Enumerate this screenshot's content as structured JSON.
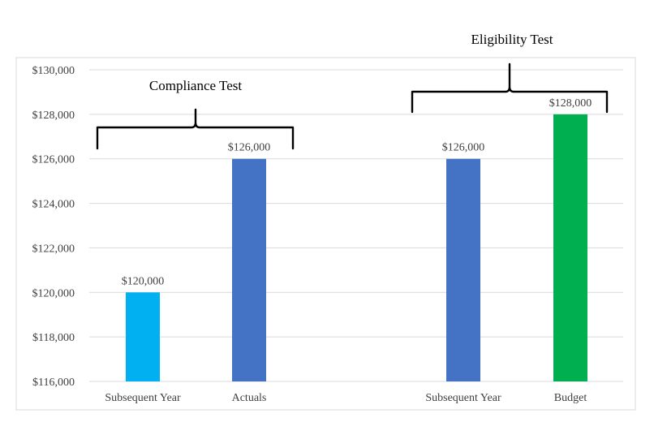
{
  "chart_data": {
    "type": "bar",
    "title": "",
    "xlabel": "",
    "ylabel": "",
    "ylim": [
      116000,
      130000
    ],
    "ytick_step": 2000,
    "ytick_labels": [
      "$116,000",
      "$118,000",
      "$120,000",
      "$122,000",
      "$124,000",
      "$126,000",
      "$128,000",
      "$130,000"
    ],
    "grid": true,
    "legend": "none",
    "categories": [
      "Subsequent Year",
      "Actuals",
      "Subsequent Year",
      "Budget"
    ],
    "values": [
      120000,
      126000,
      126000,
      128000
    ],
    "data_labels": [
      "$120,000",
      "$126,000",
      "$126,000",
      "$128,000"
    ],
    "bar_colors": [
      "#00b0f0",
      "#4472c4",
      "#4472c4",
      "#00b050"
    ],
    "groups": [
      {
        "label": "Compliance Test",
        "categories": [
          0,
          1
        ]
      },
      {
        "label": "Eligibility Test",
        "categories": [
          2,
          3
        ]
      }
    ]
  }
}
